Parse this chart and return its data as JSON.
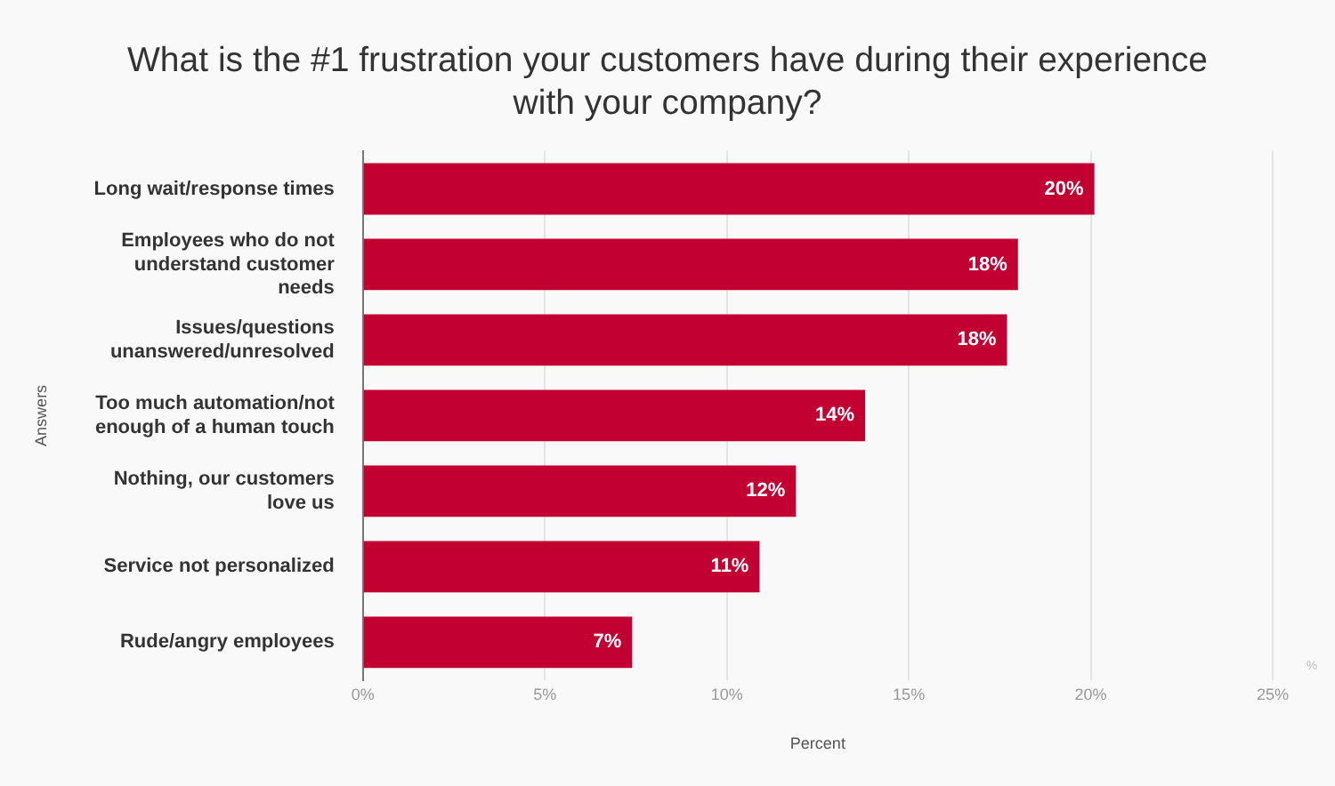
{
  "chart_data": {
    "type": "bar",
    "orientation": "horizontal",
    "title": "What is the #1 frustration your customers have during their experience with your company?",
    "xlabel": "Percent",
    "ylabel": "Answers",
    "categories": [
      "Long wait/response times",
      "Employees who do not understand customer needs",
      "Issues/questions unanswered/unresolved",
      "Too much automation/not enough of a human touch",
      "Nothing, our customers love us",
      "Service not personalized",
      "Rude/angry employees"
    ],
    "values": [
      20.1,
      18.0,
      17.7,
      13.8,
      11.9,
      10.9,
      7.4
    ],
    "value_labels": [
      "20%",
      "18%",
      "18%",
      "14%",
      "12%",
      "11%",
      "7%"
    ],
    "color": "#c20031",
    "xlim": [
      0,
      25
    ],
    "xticks": [
      {
        "value": 0,
        "label": "0%"
      },
      {
        "value": 5,
        "label": "5%"
      },
      {
        "value": 10,
        "label": "10%"
      },
      {
        "value": 15,
        "label": "15%"
      },
      {
        "value": 20,
        "label": "20%"
      },
      {
        "value": 25,
        "label": "25%"
      }
    ],
    "grid": "x",
    "legend": false,
    "annotations": [
      "%"
    ]
  }
}
